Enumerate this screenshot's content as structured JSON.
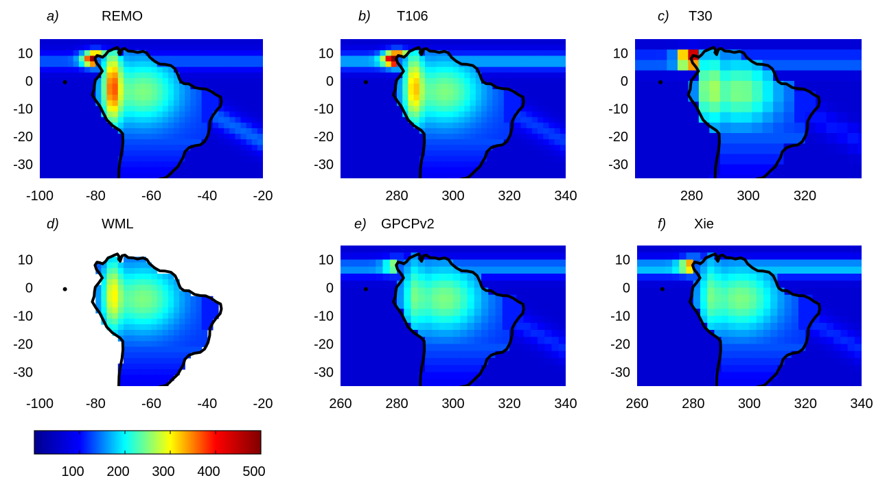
{
  "chart_data": [
    {
      "type": "heatmap",
      "panel_label": "a)",
      "title": "REMO",
      "grid": "fine",
      "xlim": [
        -100,
        -20
      ],
      "ylim": [
        -35,
        15
      ],
      "xticks": [
        -100,
        -80,
        -60,
        -40,
        -20
      ],
      "xtick_labels": [
        "-100",
        "-80",
        "-60",
        "-40",
        "-20"
      ],
      "yticks": [
        10,
        0,
        -10,
        -20,
        -30
      ],
      "ytick_labels": [
        "10",
        "0",
        "-10",
        "-20",
        "-30"
      ]
    },
    {
      "type": "heatmap",
      "panel_label": "b)",
      "title": "T106",
      "grid": "fine",
      "xlim": [
        260,
        340
      ],
      "ylim": [
        -35,
        15
      ],
      "xticks": [
        280,
        300,
        320,
        340
      ],
      "xtick_labels": [
        "280",
        "300",
        "320",
        "340"
      ],
      "yticks": [
        10,
        0,
        -10,
        -20,
        -30
      ],
      "ytick_labels": [
        "10",
        "0",
        "-10",
        "-20",
        "-30"
      ]
    },
    {
      "type": "heatmap",
      "panel_label": "c)",
      "title": "T30",
      "grid": "coarse",
      "xlim": [
        260,
        340
      ],
      "ylim": [
        -35,
        15
      ],
      "xticks": [
        280,
        300,
        320
      ],
      "xtick_labels": [
        "280",
        "300",
        "320"
      ],
      "yticks": [
        10,
        0,
        -10,
        -20,
        -30
      ],
      "ytick_labels": [
        "10",
        "0",
        "-10",
        "-20",
        "-30"
      ]
    },
    {
      "type": "heatmap",
      "panel_label": "d)",
      "title": "WML",
      "grid": "fine",
      "land_only": true,
      "xlim": [
        -100,
        -20
      ],
      "ylim": [
        -35,
        15
      ],
      "xticks": [
        -100,
        -80,
        -60,
        -40,
        -20
      ],
      "xtick_labels": [
        "-100",
        "-80",
        "-60",
        "-40",
        "-20"
      ],
      "yticks": [
        10,
        0,
        -10,
        -20,
        -30
      ],
      "ytick_labels": [
        "10",
        "0",
        "-10",
        "-20",
        "-30"
      ]
    },
    {
      "type": "heatmap",
      "panel_label": "e)",
      "title": "GPCPv2",
      "grid": "medium",
      "xlim": [
        260,
        340
      ],
      "ylim": [
        -35,
        15
      ],
      "xticks": [
        260,
        280,
        300,
        320,
        340
      ],
      "xtick_labels": [
        "260",
        "280",
        "300",
        "320",
        "340"
      ],
      "yticks": [
        10,
        0,
        -10,
        -20,
        -30
      ],
      "ytick_labels": [
        "10",
        "0",
        "-10",
        "-20",
        "-30"
      ]
    },
    {
      "type": "heatmap",
      "panel_label": "f)",
      "title": "Xie",
      "grid": "medium",
      "xlim": [
        260,
        340
      ],
      "ylim": [
        -35,
        15
      ],
      "xticks": [
        260,
        280,
        300,
        320,
        340
      ],
      "xtick_labels": [
        "260",
        "280",
        "300",
        "320",
        "340"
      ],
      "yticks": [
        10,
        0,
        -10,
        -20,
        -30
      ],
      "ytick_labels": [
        "10",
        "0",
        "-10",
        "-20",
        "-30"
      ]
    }
  ],
  "colorbar": {
    "range": [
      0,
      500
    ],
    "ticks": [
      100,
      200,
      300,
      400,
      500
    ],
    "tick_labels": [
      "100",
      "200",
      "300",
      "400",
      "500"
    ],
    "colormap": "jet",
    "colors": [
      "#00008f",
      "#0000ff",
      "#00ffff",
      "#ffff00",
      "#ff0000",
      "#800000"
    ]
  },
  "colors": {
    "ocean_background": "#0b2a8c",
    "coastline": "#000000",
    "missing_data": "#ffffff"
  }
}
